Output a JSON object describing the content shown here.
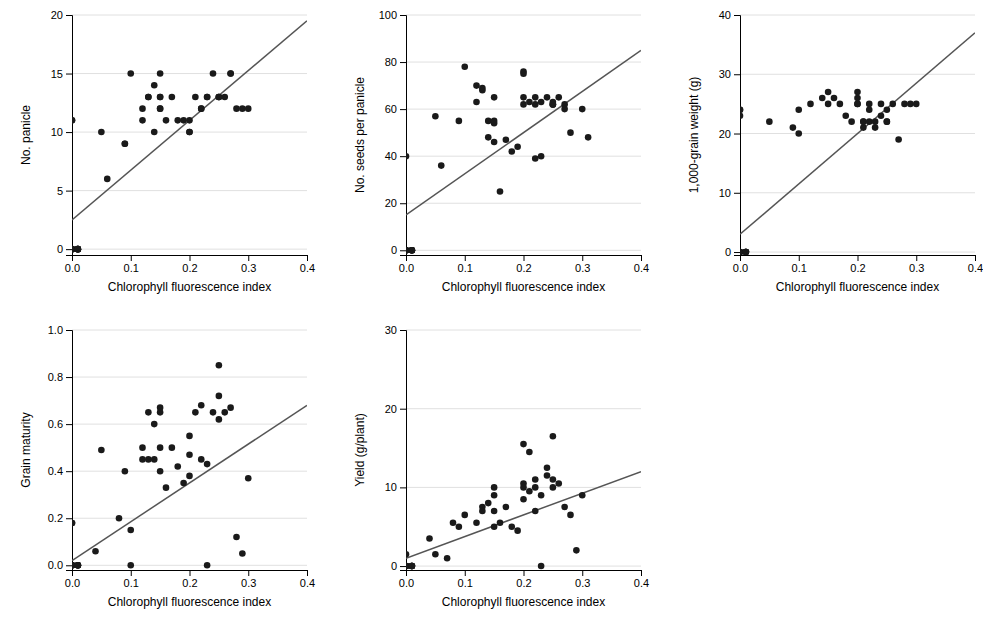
{
  "chart_data": [
    {
      "type": "scatter",
      "xlabel": "Chlorophyll fluorescence index",
      "ylabel": "No. panicle",
      "xlim": [
        0,
        0.4
      ],
      "ylim": [
        -0.5,
        20
      ],
      "xticks": [
        {
          "value": 0,
          "label": "0.0"
        },
        0.1,
        0.2,
        0.3,
        0.4
      ],
      "yticks": [
        0,
        5,
        10,
        15,
        20
      ],
      "grid": "y",
      "series": [
        {
          "type": "scatter",
          "color": "#1a1a1a",
          "x": [
            0.0,
            0.0,
            0.0,
            0.0,
            0.0,
            0.0,
            0.01,
            0.01,
            0.01,
            0.01,
            0.01,
            0.05,
            0.06,
            0.09,
            0.09,
            0.1,
            0.12,
            0.12,
            0.13,
            0.13,
            0.14,
            0.14,
            0.15,
            0.15,
            0.15,
            0.15,
            0.15,
            0.16,
            0.17,
            0.18,
            0.19,
            0.2,
            0.2,
            0.2,
            0.21,
            0.22,
            0.22,
            0.23,
            0.23,
            0.24,
            0.25,
            0.25,
            0.25,
            0.26,
            0.27,
            0.27,
            0.28,
            0.29,
            0.3
          ],
          "values": [
            11,
            11,
            0,
            0,
            0,
            0,
            0,
            0,
            0,
            0,
            0,
            10,
            6,
            9,
            9,
            15,
            11,
            12,
            13,
            13,
            14,
            10,
            12,
            12,
            13,
            13,
            15,
            11,
            13,
            11,
            11,
            10,
            10,
            11,
            13,
            12,
            12,
            13,
            13,
            15,
            13,
            13,
            13,
            13,
            15,
            15,
            12,
            12,
            12
          ]
        },
        {
          "type": "line",
          "color": "#555555",
          "x": [
            0,
            0.4
          ],
          "values": [
            2.5,
            19.5
          ]
        }
      ]
    },
    {
      "type": "scatter",
      "xlabel": "Chlorophyll fluorescence index",
      "ylabel": "No. seeds per panicle",
      "xlim": [
        0,
        0.4
      ],
      "ylim": [
        -2,
        100
      ],
      "xticks": [
        {
          "value": 0,
          "label": "0.0"
        },
        0.1,
        0.2,
        0.3,
        0.4
      ],
      "yticks": [
        0,
        20,
        40,
        60,
        80,
        100
      ],
      "grid": "y",
      "series": [
        {
          "type": "scatter",
          "color": "#1a1a1a",
          "x": [
            0.0,
            0.0,
            0.0,
            0.0,
            0.0,
            0.0,
            0.01,
            0.01,
            0.01,
            0.01,
            0.01,
            0.05,
            0.06,
            0.09,
            0.1,
            0.12,
            0.12,
            0.13,
            0.13,
            0.14,
            0.14,
            0.15,
            0.15,
            0.15,
            0.15,
            0.16,
            0.17,
            0.18,
            0.19,
            0.2,
            0.2,
            0.2,
            0.2,
            0.21,
            0.22,
            0.22,
            0.22,
            0.23,
            0.23,
            0.24,
            0.25,
            0.25,
            0.25,
            0.25,
            0.26,
            0.27,
            0.27,
            0.28,
            0.3,
            0.31
          ],
          "values": [
            40,
            0,
            0,
            0,
            0,
            0,
            0,
            0,
            0,
            0,
            0,
            57,
            36,
            55,
            78,
            63,
            70,
            68,
            69,
            55,
            48,
            54,
            46,
            55,
            65,
            25,
            47,
            42,
            44,
            76,
            75,
            62,
            65,
            63,
            65,
            62,
            39,
            40,
            63,
            65,
            62,
            62,
            62,
            63,
            65,
            62,
            60,
            50,
            60,
            48
          ]
        },
        {
          "type": "line",
          "color": "#555555",
          "x": [
            0,
            0.4
          ],
          "values": [
            15,
            85
          ]
        }
      ]
    },
    {
      "type": "scatter",
      "xlabel": "Chlorophyll fluorescence index",
      "ylabel": "1,000-grain weight (g)",
      "xlim": [
        0,
        0.4
      ],
      "ylim": [
        -0.5,
        40
      ],
      "xticks": [
        {
          "value": 0,
          "label": "0.0"
        },
        0.1,
        0.2,
        0.3,
        0.4
      ],
      "yticks": [
        0,
        10,
        20,
        30,
        40
      ],
      "grid": "y",
      "series": [
        {
          "type": "scatter",
          "color": "#1a1a1a",
          "x": [
            0.0,
            0.0,
            0.0,
            0.0,
            0.0,
            0.0,
            0.0,
            0.01,
            0.01,
            0.01,
            0.01,
            0.01,
            0.05,
            0.09,
            0.1,
            0.1,
            0.12,
            0.14,
            0.15,
            0.15,
            0.16,
            0.17,
            0.18,
            0.19,
            0.2,
            0.2,
            0.2,
            0.2,
            0.21,
            0.21,
            0.21,
            0.22,
            0.22,
            0.22,
            0.23,
            0.23,
            0.24,
            0.24,
            0.25,
            0.25,
            0.25,
            0.26,
            0.27,
            0.28,
            0.29,
            0.3
          ],
          "values": [
            24,
            24,
            23,
            0,
            0,
            0,
            0,
            0,
            0,
            0,
            0,
            0,
            22,
            21,
            20,
            24,
            25,
            26,
            25,
            27,
            26,
            25,
            23,
            22,
            25,
            26,
            27,
            25,
            22,
            21,
            22,
            22,
            24,
            25,
            22,
            21,
            23,
            25,
            22,
            22,
            24,
            25,
            19,
            25,
            25,
            25
          ]
        },
        {
          "type": "line",
          "color": "#555555",
          "x": [
            0,
            0.4
          ],
          "values": [
            3,
            37
          ]
        }
      ]
    },
    {
      "type": "scatter",
      "xlabel": "Chlorophyll fluorescence index",
      "ylabel": "Grain maturity",
      "xlim": [
        0,
        0.4
      ],
      "ylim": [
        -0.02,
        1.0
      ],
      "xticks": [
        {
          "value": 0,
          "label": "0.0"
        },
        0.1,
        0.2,
        0.3,
        0.4
      ],
      "yticks": [
        {
          "value": 0,
          "label": "0.0"
        },
        0.2,
        0.4,
        0.6,
        0.8,
        {
          "value": 1.0,
          "label": "1.0"
        }
      ],
      "grid": "y",
      "series": [
        {
          "type": "scatter",
          "color": "#1a1a1a",
          "x": [
            0.0,
            0.0,
            0.0,
            0.0,
            0.0,
            0.0,
            0.0,
            0.01,
            0.01,
            0.01,
            0.01,
            0.01,
            0.04,
            0.05,
            0.08,
            0.09,
            0.1,
            0.1,
            0.12,
            0.12,
            0.13,
            0.13,
            0.14,
            0.14,
            0.15,
            0.15,
            0.15,
            0.15,
            0.16,
            0.17,
            0.18,
            0.19,
            0.2,
            0.2,
            0.2,
            0.21,
            0.22,
            0.22,
            0.23,
            0.23,
            0.24,
            0.25,
            0.25,
            0.25,
            0.26,
            0.27,
            0.28,
            0.29,
            0.3
          ],
          "values": [
            0.18,
            0.18,
            0.0,
            0.0,
            0.0,
            0.0,
            0.0,
            0.0,
            0.0,
            0.0,
            0.0,
            0.0,
            0.06,
            0.49,
            0.2,
            0.4,
            0.0,
            0.15,
            0.45,
            0.5,
            0.65,
            0.45,
            0.6,
            0.45,
            0.4,
            0.5,
            0.65,
            0.67,
            0.33,
            0.5,
            0.42,
            0.35,
            0.47,
            0.55,
            0.38,
            0.65,
            0.45,
            0.68,
            0.43,
            0.0,
            0.65,
            0.85,
            0.62,
            0.72,
            0.65,
            0.67,
            0.12,
            0.05,
            0.37
          ]
        },
        {
          "type": "line",
          "color": "#555555",
          "x": [
            0,
            0.4
          ],
          "values": [
            0.02,
            0.68
          ]
        }
      ]
    },
    {
      "type": "scatter",
      "xlabel": "Chlorophyll fluorescence index",
      "ylabel": "Yield (g/plant)",
      "xlim": [
        0,
        0.4
      ],
      "ylim": [
        -0.5,
        30
      ],
      "xticks": [
        {
          "value": 0,
          "label": "0.0"
        },
        0.1,
        0.2,
        0.3,
        0.4
      ],
      "yticks": [
        0,
        10,
        20,
        30
      ],
      "grid": "y",
      "series": [
        {
          "type": "scatter",
          "color": "#1a1a1a",
          "x": [
            0.0,
            0.0,
            0.0,
            0.0,
            0.0,
            0.0,
            0.0,
            0.01,
            0.01,
            0.01,
            0.01,
            0.01,
            0.04,
            0.05,
            0.07,
            0.08,
            0.09,
            0.1,
            0.12,
            0.13,
            0.13,
            0.14,
            0.15,
            0.15,
            0.15,
            0.15,
            0.16,
            0.17,
            0.18,
            0.19,
            0.2,
            0.2,
            0.2,
            0.2,
            0.21,
            0.21,
            0.22,
            0.22,
            0.22,
            0.23,
            0.23,
            0.24,
            0.24,
            0.25,
            0.25,
            0.25,
            0.26,
            0.27,
            0.28,
            0.29,
            0.3
          ],
          "values": [
            1.5,
            0,
            0,
            0,
            0,
            0,
            0,
            0,
            0,
            0,
            0,
            0,
            3.5,
            1.5,
            1.0,
            5.5,
            5.0,
            6.5,
            5.5,
            7.5,
            7.0,
            8.0,
            10.0,
            9.0,
            7.0,
            5.0,
            5.5,
            7.5,
            5.0,
            4.5,
            10.5,
            15.5,
            10.0,
            8.5,
            14.5,
            9.5,
            11.0,
            10.0,
            7.0,
            9.0,
            0.0,
            11.5,
            12.5,
            16.5,
            11.0,
            10.0,
            10.5,
            7.5,
            6.5,
            2.0,
            9.0
          ]
        },
        {
          "type": "line",
          "color": "#555555",
          "x": [
            0,
            0.4
          ],
          "values": [
            1.0,
            12.0
          ]
        }
      ]
    }
  ]
}
